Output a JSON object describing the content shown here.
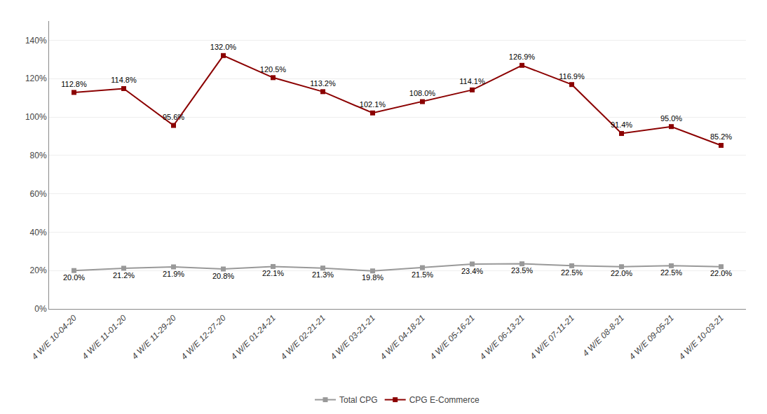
{
  "chart_data": {
    "type": "line",
    "categories": [
      "4 W/E 10-04-20",
      "4 W/E 11-01-20",
      "4 W/E 11-29-20",
      "4 W/E 12-27-20",
      "4 W/E 01-24-21",
      "4 W/E 02-21-21",
      "4 W/E 03-21-21",
      "4 W/E 04-18-21",
      "4 W/E 05-16-21",
      "4 W/E 06-13-21",
      "4 W/E 07-11-21",
      "4 W/E 08-8-21",
      "4 W/E 09-05-21",
      "4 W/E 10-03-21"
    ],
    "series": [
      {
        "name": "Total CPG",
        "color": "#999999",
        "marker": "square",
        "values": [
          20.0,
          21.2,
          21.9,
          20.8,
          22.1,
          21.3,
          19.8,
          21.5,
          23.4,
          23.5,
          22.5,
          22.0,
          22.5,
          22.0
        ],
        "value_labels": [
          "20.0%",
          "21.2%",
          "21.9%",
          "20.8%",
          "22.1%",
          "21.3%",
          "19.8%",
          "21.5%",
          "23.4%",
          "23.5%",
          "22.5%",
          "22.0%",
          "22.5%",
          "22.0%"
        ]
      },
      {
        "name": "CPG E-Commerce",
        "color": "#8B0000",
        "marker": "square",
        "values": [
          112.8,
          114.8,
          95.6,
          132.0,
          120.5,
          113.2,
          102.1,
          108.0,
          114.1,
          126.9,
          116.9,
          91.4,
          95.0,
          85.2
        ],
        "value_labels": [
          "112.8%",
          "114.8%",
          "95.6%",
          "132.0%",
          "120.5%",
          "113.2%",
          "102.1%",
          "108.0%",
          "114.1%",
          "126.9%",
          "116.9%",
          "91.4%",
          "95.0%",
          "85.2%"
        ]
      }
    ],
    "ylim": [
      0,
      150
    ],
    "yticks": [
      {
        "value": 0,
        "label": "0%"
      },
      {
        "value": 20,
        "label": "20%"
      },
      {
        "value": 40,
        "label": "40%"
      },
      {
        "value": 60,
        "label": "60%"
      },
      {
        "value": 80,
        "label": "80%"
      },
      {
        "value": 100,
        "label": "100%"
      },
      {
        "value": 120,
        "label": "120%"
      },
      {
        "value": 140,
        "label": "140%"
      }
    ],
    "grid": true,
    "legend": "bottom",
    "data_labels": true
  }
}
